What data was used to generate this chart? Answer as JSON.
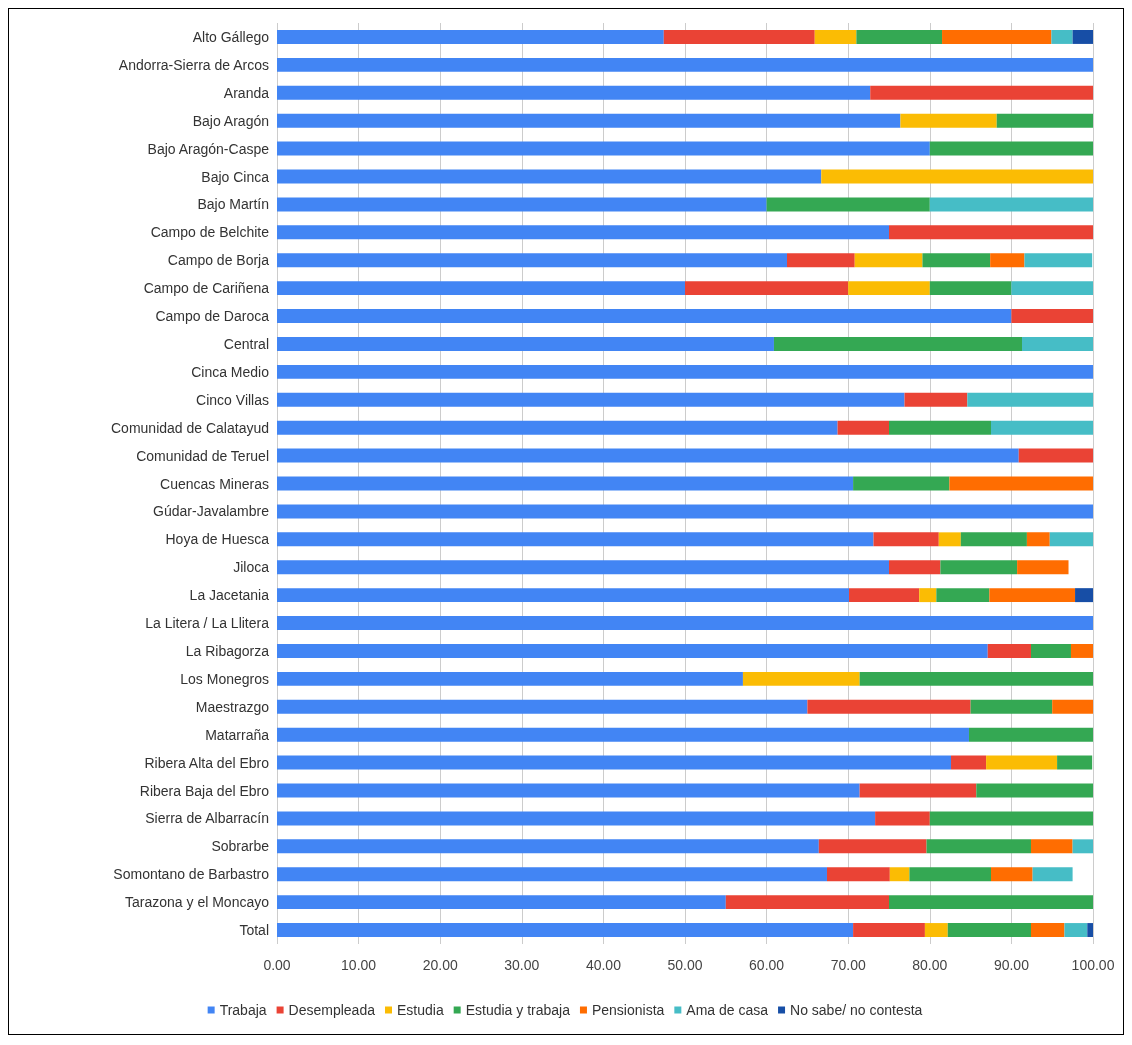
{
  "chart_data": {
    "type": "bar",
    "orientation": "horizontal",
    "stacked": true,
    "grid": "x",
    "legend": "bottom",
    "categories": [
      "Alto Gállego",
      "Andorra-Sierra de Arcos",
      "Aranda",
      "Bajo Aragón",
      "Bajo Aragón-Caspe",
      "Bajo Cinca",
      "Bajo Martín",
      "Campo de Belchite",
      "Campo de Borja",
      "Campo de Cariñena",
      "Campo de Daroca",
      "Central",
      "Cinca Medio",
      "Cinco Villas",
      "Comunidad de Calatayud",
      "Comunidad de Teruel",
      "Cuencas Mineras",
      "Gúdar-Javalambre",
      "Hoya de Huesca",
      "Jiloca",
      "La Jacetania",
      "La Litera / La Llitera",
      "La Ribagorza",
      "Los Monegros",
      "Maestrazgo",
      "Matarraña",
      "Ribera Alta del Ebro",
      "Ribera Baja del Ebro",
      "Sierra de Albarracín",
      "Sobrarbe",
      "Somontano de Barbastro",
      "Tarazona y el Moncayo",
      "Total"
    ],
    "xlim": [
      0,
      100
    ],
    "xticks": [
      {
        "value": 0,
        "label": "0.00"
      },
      {
        "value": 10,
        "label": "10.00"
      },
      {
        "value": 20,
        "label": "20.00"
      },
      {
        "value": 30,
        "label": "30.00"
      },
      {
        "value": 40,
        "label": "40.00"
      },
      {
        "value": 50,
        "label": "50.00"
      },
      {
        "value": 60,
        "label": "60.00"
      },
      {
        "value": 70,
        "label": "70.00"
      },
      {
        "value": 80,
        "label": "80.00"
      },
      {
        "value": 90,
        "label": "90.00"
      },
      {
        "value": 100,
        "label": "100.00"
      }
    ],
    "series": [
      {
        "name": "Trabaja",
        "color": "#4285f4",
        "values": [
          47.4,
          100,
          72.7,
          76.4,
          80,
          66.7,
          60,
          75,
          62.5,
          50,
          90,
          60.9,
          100,
          76.9,
          68.7,
          90.9,
          70.6,
          100,
          73.1,
          75,
          70.1,
          100,
          87.1,
          57.1,
          65,
          84.8,
          82.6,
          71.4,
          73.3,
          66.4,
          67.4,
          55,
          70.6
        ]
      },
      {
        "name": "Desempleada",
        "color": "#ea4335",
        "values": [
          18.5,
          null,
          27.3,
          null,
          null,
          null,
          null,
          25,
          8.3,
          20,
          10,
          null,
          null,
          7.7,
          6.3,
          9.1,
          null,
          null,
          8.0,
          6.3,
          8.6,
          null,
          5.3,
          null,
          20,
          null,
          4.3,
          14.3,
          6.7,
          13.2,
          7.7,
          20,
          8.8
        ]
      },
      {
        "name": "Estudia",
        "color": "#fbbc04",
        "values": [
          5.1,
          null,
          null,
          11.8,
          null,
          33.3,
          null,
          null,
          8.3,
          10,
          null,
          null,
          null,
          null,
          null,
          null,
          null,
          null,
          2.7,
          null,
          2.1,
          null,
          null,
          14.3,
          null,
          null,
          8.7,
          null,
          null,
          null,
          2.4,
          null,
          2.8
        ]
      },
      {
        "name": "Estudia y trabaja",
        "color": "#34a853",
        "values": [
          10.5,
          null,
          null,
          11.8,
          20,
          null,
          20,
          null,
          8.3,
          10,
          null,
          30.4,
          null,
          null,
          12.5,
          null,
          11.8,
          null,
          8.1,
          9.4,
          6.5,
          null,
          4.9,
          28.6,
          10,
          15.2,
          4.3,
          14.3,
          20,
          12.8,
          10.0,
          25,
          10.2
        ]
      },
      {
        "name": "Pensionista",
        "color": "#ff6d01",
        "values": [
          13.4,
          null,
          null,
          null,
          null,
          null,
          null,
          null,
          4.2,
          null,
          null,
          null,
          null,
          null,
          null,
          null,
          17.6,
          null,
          2.8,
          6.3,
          10.5,
          null,
          2.7,
          null,
          5,
          null,
          null,
          null,
          null,
          5.1,
          5.1,
          null,
          4.1
        ]
      },
      {
        "name": "Ama de casa",
        "color": "#46bdc6",
        "values": [
          2.6,
          null,
          null,
          null,
          null,
          null,
          20,
          null,
          8.3,
          10,
          null,
          8.7,
          null,
          15.4,
          12.5,
          null,
          null,
          null,
          5.3,
          null,
          null,
          null,
          null,
          null,
          null,
          null,
          null,
          null,
          null,
          2.5,
          4.9,
          null,
          2.8
        ]
      },
      {
        "name": "No sabe/ no contesta",
        "color": "#174ea6",
        "values": [
          2.5,
          null,
          null,
          null,
          null,
          null,
          null,
          null,
          null,
          null,
          null,
          null,
          null,
          null,
          null,
          null,
          null,
          null,
          null,
          null,
          2.2,
          null,
          null,
          null,
          null,
          null,
          null,
          null,
          null,
          null,
          null,
          null,
          0.7
        ]
      }
    ]
  }
}
